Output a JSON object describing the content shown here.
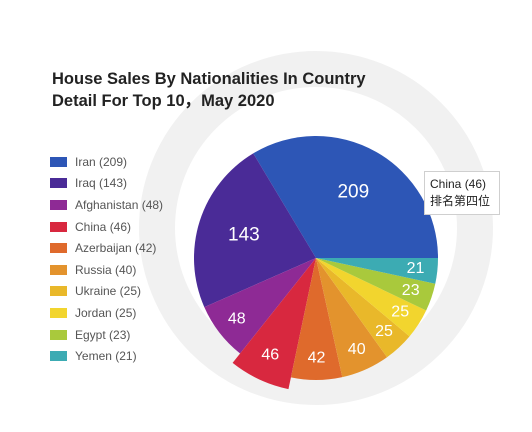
{
  "chart_data": {
    "type": "pie",
    "title": "House Sales By Nationalities In Country\nDetail For Top 10，May 2020",
    "categories": [
      "Iran",
      "Iraq",
      "Afghanistan",
      "China",
      "Azerbaijan",
      "Russia",
      "Ukraine",
      "Jordan",
      "Egypt",
      "Yemen"
    ],
    "values": [
      209,
      143,
      48,
      46,
      42,
      40,
      25,
      25,
      23,
      21
    ],
    "legend_labels": [
      "Iran (209)",
      "Iraq (143)",
      "Afghanistan (48)",
      "China (46)",
      "Azerbaijan (42)",
      "Russia (40)",
      "Ukraine (25)",
      "Jordan (25)",
      "Egypt (23)",
      "Yemen (21)"
    ],
    "colors": [
      "#2d56b6",
      "#4a2b97",
      "#8e2a95",
      "#d8283f",
      "#df6a2c",
      "#e3932d",
      "#e9b82a",
      "#f2d52e",
      "#a9c93c",
      "#3cabb3"
    ],
    "legend_placement": "left",
    "highlight": {
      "category": "China",
      "callout_line1": "China (46)",
      "callout_line2": "排名第四位"
    }
  }
}
